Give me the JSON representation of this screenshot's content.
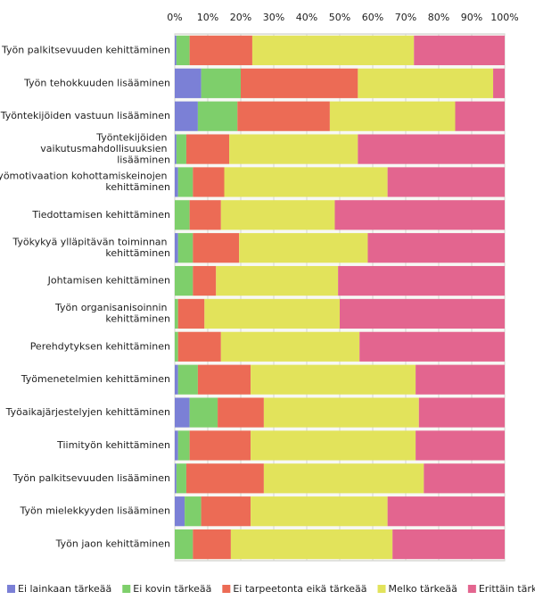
{
  "chart_data": {
    "type": "stacked-bar-horizontal",
    "categories": [
      "Työn palkitsevuuden kehittäminen",
      "Työn tehokkuuden lisääminen",
      "Työntekijöiden vastuun lisääminen",
      "Työntekijöiden vaikutusmahdollisuuksien lisääminen",
      "Työmotivaation kohottamiskeinojen kehittäminen",
      "Tiedottamisen kehittäminen",
      "Työkykyä ylläpitävän toiminnan kehittäminen",
      "Johtamisen kehittäminen",
      "Työn organisanisoinnin kehittäminen",
      "Perehdytyksen kehittäminen",
      "Työmenetelmien kehittäminen",
      "Työaikajärjestelyjen kehittäminen",
      "Tiimityön kehittäminen",
      "Työn palkitsevuuden lisääminen",
      "Työn mielekkyyden lisääminen",
      "Työn jaon kehittäminen"
    ],
    "series": [
      {
        "name": "Ei lainkaan tärkeää",
        "color": "#7b80d6",
        "values": [
          0.5,
          8,
          7,
          0.5,
          1,
          0,
          1,
          0,
          0,
          0,
          1,
          4.5,
          1,
          0.5,
          3,
          0
        ]
      },
      {
        "name": "Ei kovin tärkeää",
        "color": "#7ecf6b",
        "values": [
          4,
          12,
          12,
          3,
          4.5,
          4.5,
          4.5,
          5.5,
          1,
          1,
          6,
          8.5,
          3.5,
          3,
          5,
          5.5
        ]
      },
      {
        "name": "Ei tarpeetonta eikä tärkeää",
        "color": "#ec6b55",
        "values": [
          19,
          35.5,
          28,
          13,
          9.5,
          9.5,
          14,
          7,
          8,
          13,
          16,
          14,
          18.5,
          23.5,
          15,
          11.5
        ]
      },
      {
        "name": "Melko tärkeää",
        "color": "#e2e35b",
        "values": [
          49,
          41,
          38,
          39,
          49.5,
          34.5,
          39,
          37,
          41,
          42,
          50,
          47,
          50,
          48.5,
          41.5,
          49
        ]
      },
      {
        "name": "Erittäin tärkeää",
        "color": "#e3658f",
        "values": [
          27.5,
          3.5,
          15,
          44.5,
          35.5,
          51.5,
          41.5,
          50.5,
          50,
          44,
          27,
          26,
          27,
          24.5,
          35.5,
          34
        ]
      }
    ],
    "xlim": [
      0,
      100
    ],
    "xticks": [
      {
        "value": 0,
        "label": "0%"
      },
      {
        "value": 10,
        "label": "10%"
      },
      {
        "value": 20,
        "label": "20%"
      },
      {
        "value": 30,
        "label": "30%"
      },
      {
        "value": 40,
        "label": "40%"
      },
      {
        "value": 50,
        "label": "50%"
      },
      {
        "value": 60,
        "label": "60%"
      },
      {
        "value": 70,
        "label": "70%"
      },
      {
        "value": 80,
        "label": "80%"
      },
      {
        "value": 90,
        "label": "90%"
      },
      {
        "value": 100,
        "label": "100%"
      }
    ],
    "grid": true,
    "legend": "bottom"
  }
}
